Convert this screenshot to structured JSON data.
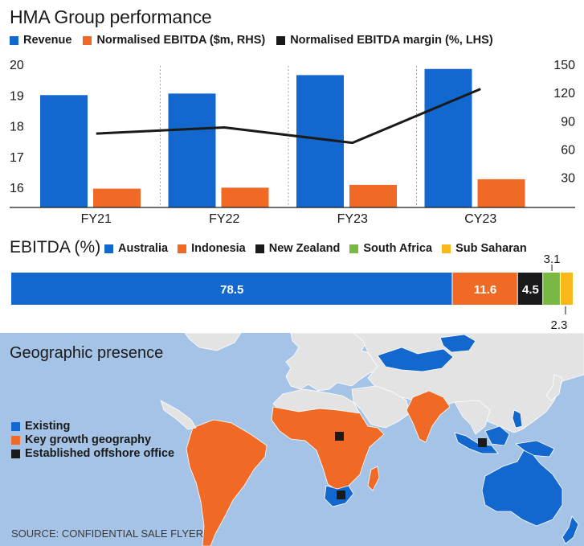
{
  "title": "HMA Group performance",
  "legend": {
    "revenue": "Revenue",
    "ebitda": "Normalised EBITDA ($m, RHS)",
    "margin": "Normalised EBITDA margin (%, LHS)"
  },
  "colors": {
    "revenue": "#1268cf",
    "ebitda": "#f06a25",
    "margin": "#1a1a1a",
    "australia": "#1268cf",
    "indonesia": "#f06a25",
    "new_zealand": "#1a1a1a",
    "south_africa": "#78b843",
    "sub_saharan": "#f8b819",
    "ocean": "#a5c3e6",
    "land": "#e3e3e3"
  },
  "chart_data": [
    {
      "type": "bar",
      "categories": [
        "FY21",
        "FY22",
        "FY23",
        "CY23"
      ],
      "series": [
        {
          "name": "Revenue",
          "axis": "left",
          "values": [
            19.0,
            19.05,
            19.65,
            19.85
          ]
        },
        {
          "name": "Normalised EBITDA ($m, RHS)",
          "axis": "right",
          "values": [
            18,
            19,
            22,
            28
          ]
        },
        {
          "name": "Normalised EBITDA margin (%, LHS)",
          "type": "line",
          "axis": "left",
          "values": [
            17.75,
            17.95,
            17.45,
            19.2
          ]
        }
      ],
      "y_left": {
        "ticks": [
          16,
          17,
          18,
          19,
          20
        ],
        "range": [
          15.35,
          20.0
        ]
      },
      "y_right": {
        "ticks": [
          30,
          60,
          90,
          120,
          150
        ],
        "range": [
          -2,
          150
        ]
      },
      "grid": "dotted vertical separators between categories"
    },
    {
      "type": "stacked_bar",
      "title": "EBITDA (%)",
      "categories": [
        "Australia",
        "Indonesia",
        "New Zealand",
        "South Africa",
        "Sub Saharan"
      ],
      "values": [
        78.5,
        11.6,
        4.5,
        3.1,
        2.3
      ],
      "labels": [
        "78.5",
        "11.6",
        "4.5",
        "3.1",
        "2.3"
      ]
    }
  ],
  "map": {
    "title": "Geographic presence",
    "legend": [
      {
        "label": "Existing",
        "color": "#1268cf"
      },
      {
        "label": "Key growth geography",
        "color": "#f06a25"
      },
      {
        "label": "Established offshore office",
        "color": "#1a1a1a"
      }
    ],
    "source": "SOURCE: CONFIDENTIAL SALE FLYER"
  }
}
